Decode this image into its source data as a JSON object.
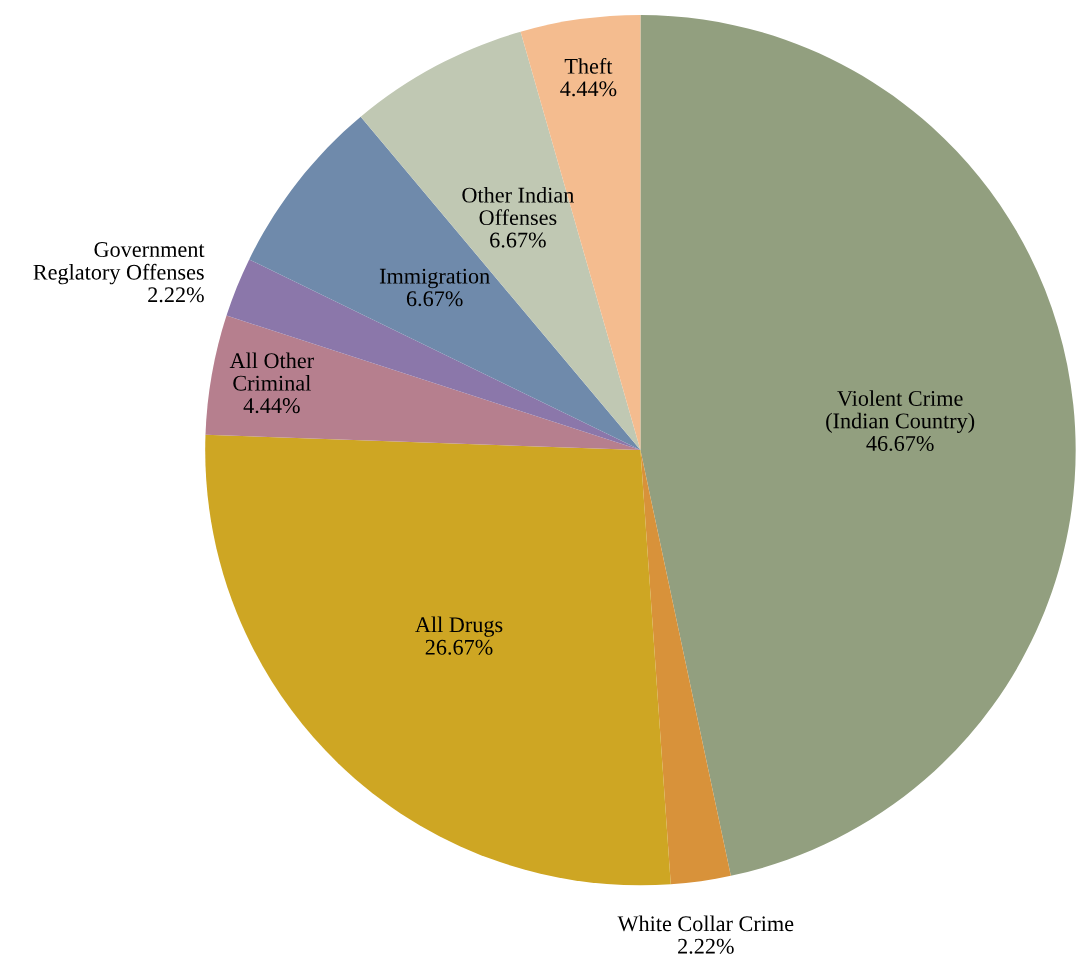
{
  "chart_data": {
    "type": "pie",
    "categories": [
      "Violent Crime\n(Indian Country)",
      "White Collar Crime",
      "All Drugs",
      "All Other\nCriminal",
      "Government\nReglatory Offenses",
      "Immigration",
      "Other Indian\nOffenses",
      "Theft"
    ],
    "values": [
      46.67,
      2.22,
      26.67,
      4.44,
      2.22,
      6.67,
      6.67,
      4.44
    ],
    "value_labels": [
      "46.67%",
      "2.22%",
      "26.67%",
      "4.44%",
      "2.22%",
      "6.67%",
      "6.67%",
      "4.44%"
    ],
    "colors": [
      "#929f7f",
      "#d8923a",
      "#cea623",
      "#b67f8e",
      "#8b77aa",
      "#6f8aab",
      "#c0c8b3",
      "#f4bc8f"
    ],
    "legend": false
  }
}
